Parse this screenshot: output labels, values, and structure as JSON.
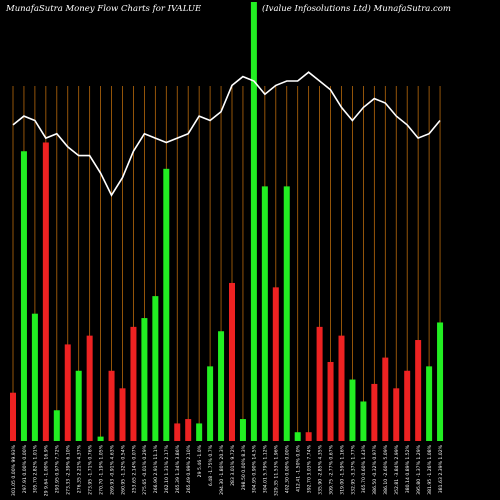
{
  "chart_data": {
    "type": "bar",
    "title": "MunafaSutra  Money Flow  Charts for IVALUE",
    "title_right": "(Ivalue   Infosolutions Ltd) MunafaSutra.com",
    "ylim": [
      0,
      100
    ],
    "grid": "vertical",
    "colors": {
      "up": "#22ee22",
      "down": "#ee2222",
      "line": "#ffffff",
      "grid": "#b8690c",
      "background": "#000000"
    },
    "bars": [
      {
        "label": "301.05 0.00% 99.93%",
        "value": 11,
        "color": "red"
      },
      {
        "label": "297.91 0.00% 0.00%",
        "value": 66,
        "color": "green"
      },
      {
        "label": "305.70 2.82% 1.01%",
        "value": 29,
        "color": "green"
      },
      {
        "label": "29 9.64 -1.00% 16.9%",
        "value": 68,
        "color": "red"
      },
      {
        "label": "293.95 0.97% 7.72%",
        "value": 7,
        "color": "green"
      },
      {
        "label": "273.33 -2.39% 6.10%",
        "value": 22,
        "color": "red"
      },
      {
        "label": "276.35 2.21% 4.37%",
        "value": 16,
        "color": "green"
      },
      {
        "label": "273.95 -1.71% 0.76%",
        "value": 24,
        "color": "red"
      },
      {
        "label": "270.70 -1.19% 1.05%",
        "value": 1,
        "color": "green"
      },
      {
        "label": "269.93 -0.91% 4.63%",
        "value": 16,
        "color": "red"
      },
      {
        "label": "260.95 -1.32% 0.54%",
        "value": 12,
        "color": "red"
      },
      {
        "label": "253.65 2.14% 0.07%",
        "value": 26,
        "color": "red"
      },
      {
        "label": "275.65 -0.01% 0.29%",
        "value": 28,
        "color": "green"
      },
      {
        "label": "266.90 2.91% 11.1%",
        "value": 33,
        "color": "green"
      },
      {
        "label": "262.10 1.31% 2.17%",
        "value": 62,
        "color": "green"
      },
      {
        "label": "265.39 1.34% 3.86%",
        "value": 4,
        "color": "red"
      },
      {
        "label": "265.49 0.99% 2.10%",
        "value": 5,
        "color": "red"
      },
      {
        "label": "29 5.46 -1.0%",
        "value": 4,
        "color": "green"
      },
      {
        "label": "6.48 -1.75% 0.7%",
        "value": 17,
        "color": "green"
      },
      {
        "label": "294.30 -1.80% 20.3%",
        "value": 25,
        "color": "green"
      },
      {
        "label": "283 3.01% 9.72%",
        "value": 36,
        "color": "red"
      },
      {
        "label": "298.50 0.00% 8.3%",
        "value": 5,
        "color": "green"
      },
      {
        "label": "304.95 0.90% 14.5%",
        "value": 100,
        "color": "green"
      },
      {
        "label": "304.01 5.79% 1.12%",
        "value": 58,
        "color": "green"
      },
      {
        "label": "329.35 11.53% 1.96%",
        "value": 35,
        "color": "red"
      },
      {
        "label": "402.30 0.00% 0.00%",
        "value": 58,
        "color": "green"
      },
      {
        "label": "412.41 -1.50% 0.0%",
        "value": 2,
        "color": "green"
      },
      {
        "label": "392.70 3.03% 7.74%",
        "value": 2,
        "color": "red"
      },
      {
        "label": "335.90 -2.85% 4.35%",
        "value": 26,
        "color": "red"
      },
      {
        "label": "309.75 -2.77% 0.67%",
        "value": 18,
        "color": "red"
      },
      {
        "label": "319.00 -1.59% 1.16%",
        "value": 24,
        "color": "red"
      },
      {
        "label": "332.95 -3.37% 1.77%",
        "value": 14,
        "color": "green"
      },
      {
        "label": "365.70 0.60% 1.43%",
        "value": 9,
        "color": "green"
      },
      {
        "label": "386.50 -0.32% 0.97%",
        "value": 13,
        "color": "red"
      },
      {
        "label": "386.10 -2.60% 5.09%",
        "value": 19,
        "color": "red"
      },
      {
        "label": "352.81 -3.84% 2.99%",
        "value": 12,
        "color": "red"
      },
      {
        "label": "380.14 0.89% 1.52%",
        "value": 16,
        "color": "red"
      },
      {
        "label": "395.80 -1.37% 1.29%",
        "value": 23,
        "color": "red"
      },
      {
        "label": "381.95 -1.26% 1.08%",
        "value": 17,
        "color": "green"
      },
      {
        "label": "381.63 2.39% 1.02%",
        "value": 27,
        "color": "green"
      }
    ],
    "line": [
      72,
      74,
      73,
      69,
      70,
      67,
      65,
      65,
      61,
      56,
      60,
      66,
      70,
      69,
      68,
      69,
      70,
      74,
      73,
      75,
      81,
      83,
      82,
      79,
      81,
      82,
      82,
      84,
      82,
      80,
      76,
      73,
      76,
      78,
      77,
      74,
      72,
      69,
      70,
      73
    ]
  }
}
